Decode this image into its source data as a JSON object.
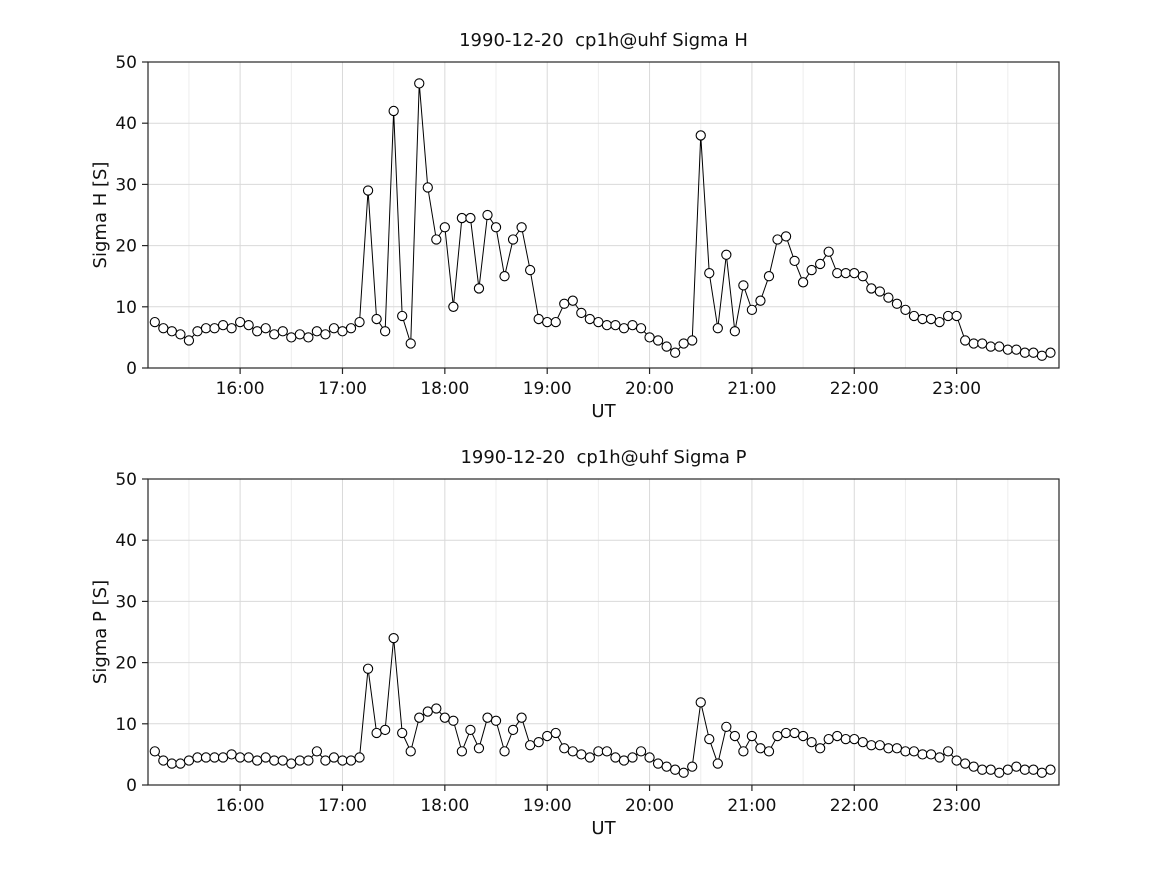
{
  "figure": {
    "background": "#ffffff"
  },
  "colors": {
    "line": "#000000",
    "marker_edge": "#000000",
    "marker_fill": "#ffffff",
    "grid_major": "#d9d9d9",
    "grid_minor": "#ededed",
    "axis_box": "#262626",
    "text": "#111111"
  },
  "chart_data": [
    {
      "type": "line",
      "title": "1990-12-20  cp1h@uhf Sigma H",
      "xlabel": "UT",
      "ylabel": "Sigma H [S]",
      "xlim": [
        15.1,
        24.0
      ],
      "ylim": [
        0,
        50
      ],
      "yticks": [
        0,
        10,
        20,
        30,
        40,
        50
      ],
      "xticks": [
        {
          "value": 16,
          "label": "16:00"
        },
        {
          "value": 17,
          "label": "17:00"
        },
        {
          "value": 18,
          "label": "18:00"
        },
        {
          "value": 19,
          "label": "19:00"
        },
        {
          "value": 20,
          "label": "20:00"
        },
        {
          "value": 21,
          "label": "21:00"
        },
        {
          "value": 22,
          "label": "22:00"
        },
        {
          "value": 23,
          "label": "23:00"
        }
      ],
      "grid": true,
      "legend": "none",
      "marker": "open-circle",
      "x_start_hour": 15,
      "x_start_minute": 10,
      "x_step_minutes": 5,
      "values": [
        7.5,
        6.5,
        6,
        5.5,
        4.5,
        6,
        6.5,
        6.5,
        7,
        6.5,
        7.5,
        7,
        6,
        6.5,
        5.5,
        6,
        5,
        5.5,
        5,
        6,
        5.5,
        6.5,
        6,
        6.5,
        7.5,
        29,
        8,
        6,
        42,
        8.5,
        4,
        46.5,
        29.5,
        21,
        23,
        10,
        24.5,
        24.5,
        13,
        25,
        23,
        15,
        21,
        23,
        16,
        8,
        7.5,
        7.5,
        10.5,
        11,
        9,
        8,
        7.5,
        7,
        7,
        6.5,
        7,
        6.5,
        5,
        4.5,
        3.5,
        2.5,
        4,
        4.5,
        38,
        15.5,
        6.5,
        18.5,
        6,
        13.5,
        9.5,
        11,
        15,
        21,
        21.5,
        17.5,
        14,
        16,
        17,
        19,
        15.5,
        15.5,
        15.5,
        15,
        13,
        12.5,
        11.5,
        10.5,
        9.5,
        8.5,
        8,
        8,
        7.5,
        8.5,
        8.5,
        4.5,
        4,
        4,
        3.5,
        3.5,
        3,
        3,
        2.5,
        2.5,
        2,
        2.5
      ]
    },
    {
      "type": "line",
      "title": "1990-12-20  cp1h@uhf Sigma P",
      "xlabel": "UT",
      "ylabel": "Sigma P [S]",
      "xlim": [
        15.1,
        24.0
      ],
      "ylim": [
        0,
        50
      ],
      "yticks": [
        0,
        10,
        20,
        30,
        40,
        50
      ],
      "xticks": [
        {
          "value": 16,
          "label": "16:00"
        },
        {
          "value": 17,
          "label": "17:00"
        },
        {
          "value": 18,
          "label": "18:00"
        },
        {
          "value": 19,
          "label": "19:00"
        },
        {
          "value": 20,
          "label": "20:00"
        },
        {
          "value": 21,
          "label": "21:00"
        },
        {
          "value": 22,
          "label": "22:00"
        },
        {
          "value": 23,
          "label": "23:00"
        }
      ],
      "grid": true,
      "legend": "none",
      "marker": "open-circle",
      "x_start_hour": 15,
      "x_start_minute": 10,
      "x_step_minutes": 5,
      "values": [
        5.5,
        4,
        3.5,
        3.5,
        4,
        4.5,
        4.5,
        4.5,
        4.5,
        5,
        4.5,
        4.5,
        4,
        4.5,
        4,
        4,
        3.5,
        4,
        4,
        5.5,
        4,
        4.5,
        4,
        4,
        4.5,
        19,
        8.5,
        9,
        24,
        8.5,
        5.5,
        11,
        12,
        12.5,
        11,
        10.5,
        5.5,
        9,
        6,
        11,
        10.5,
        5.5,
        9,
        11,
        6.5,
        7,
        8,
        8.5,
        6,
        5.5,
        5,
        4.5,
        5.5,
        5.5,
        4.5,
        4,
        4.5,
        5.5,
        4.5,
        3.5,
        3,
        2.5,
        2,
        3,
        13.5,
        7.5,
        3.5,
        9.5,
        8,
        5.5,
        8,
        6,
        5.5,
        8,
        8.5,
        8.5,
        8,
        7,
        6,
        7.5,
        8,
        7.5,
        7.5,
        7,
        6.5,
        6.5,
        6,
        6,
        5.5,
        5.5,
        5,
        5,
        4.5,
        5.5,
        4,
        3.5,
        3,
        2.5,
        2.5,
        2,
        2.5,
        3,
        2.5,
        2.5,
        2,
        2.5
      ]
    }
  ]
}
